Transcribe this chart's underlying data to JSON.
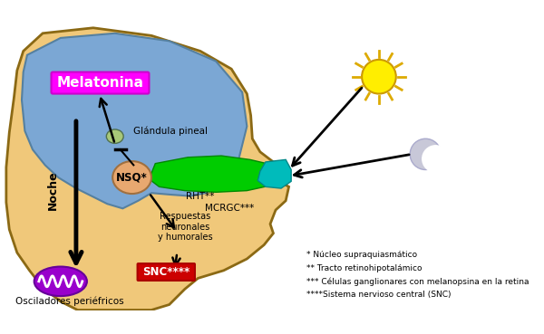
{
  "bg_color": "#FFFFFF",
  "head_skin_color": "#F0C87A",
  "brain_color": "#7BA7D4",
  "melatonin_box_color": "#FF00FF",
  "melatonin_text_color": "#FFFFFF",
  "melatonin_label": "Melatonina",
  "nsq_color": "#E8A870",
  "pineal_color": "#A8C878",
  "green_optic_color": "#00CC00",
  "cyan_retina_color": "#00BBBB",
  "snc_box_color": "#CC0000",
  "osciladores_color": "#9900CC",
  "sun_color": "#FFEE00",
  "sun_ray_color": "#DDAA00",
  "moon_color": "#C8C8D8",
  "glandula_label": "Glándula pineal",
  "nsq_label": "NSQ*",
  "rht_label": "RHT**",
  "mcrgc_label": "MCRGC***",
  "noche_label": "Noche",
  "snc_label": "SNC****",
  "osc_label": "Osciladores periéfricos",
  "resp_label": "Respuestas\nneuronales\ny humorales",
  "footnotes": [
    "* Núcleo supraquiasmático",
    "** Tracto retinohipotalámico",
    "*** Células ganglionares con melanopsina en la retina",
    "****Sistema nervioso central (SNC)"
  ]
}
